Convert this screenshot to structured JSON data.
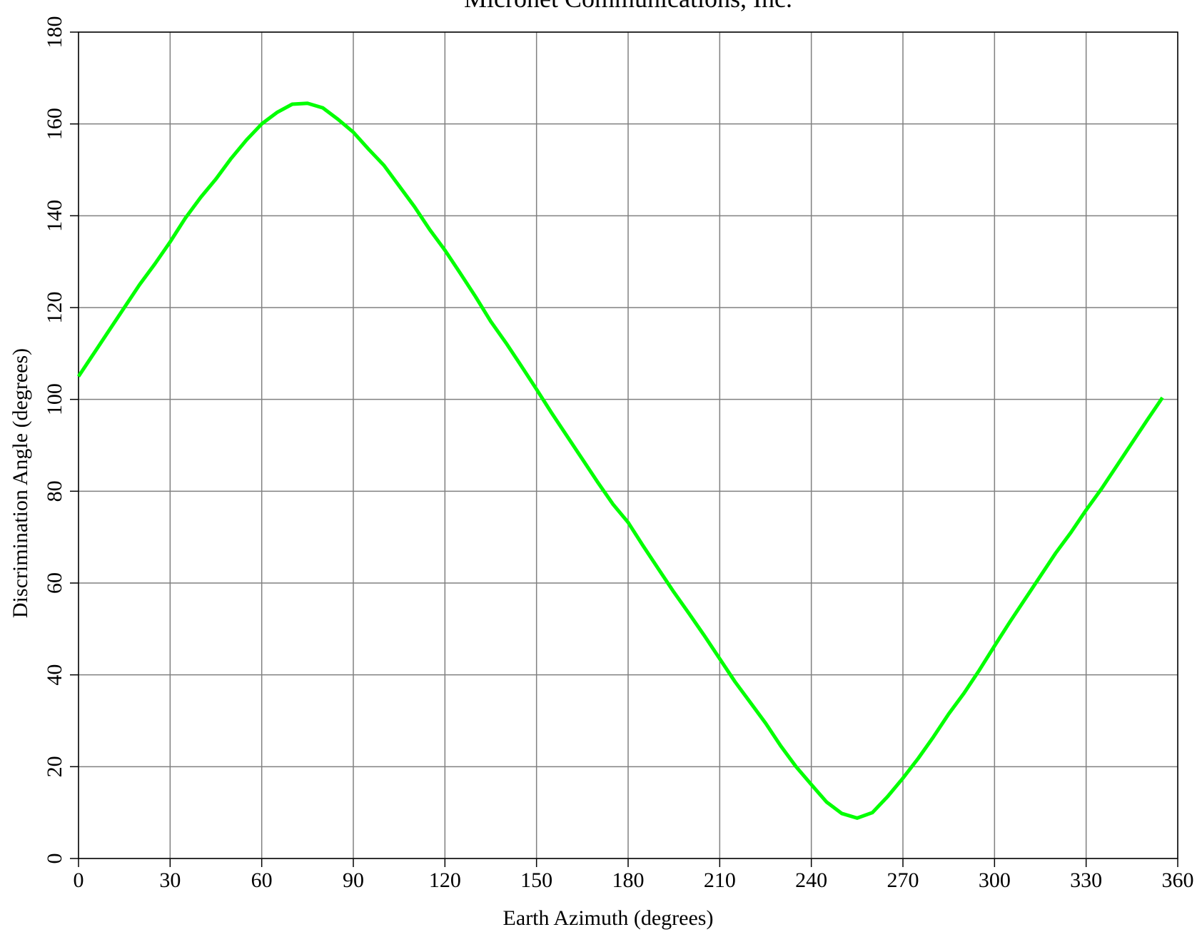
{
  "chart_data": {
    "type": "line",
    "title": "Micronet Communications, Inc.",
    "x_label": "Earth Azimuth (degrees)",
    "y_label": "Discrimination Angle (degrees)",
    "x": [
      0,
      5,
      10,
      15,
      20,
      25,
      30,
      35,
      40,
      45,
      50,
      55,
      60,
      65,
      70,
      75,
      80,
      85,
      90,
      95,
      100,
      105,
      110,
      115,
      120,
      125,
      130,
      135,
      140,
      145,
      150,
      155,
      160,
      165,
      170,
      175,
      180,
      185,
      190,
      195,
      200,
      205,
      210,
      215,
      220,
      225,
      230,
      235,
      240,
      245,
      250,
      255,
      260,
      265,
      270,
      275,
      280,
      285,
      290,
      295,
      300,
      305,
      310,
      315,
      320,
      325,
      330,
      335,
      340,
      345,
      350,
      355
    ],
    "series": [
      {
        "name": "Discrimination Angle",
        "color": "#00ff00",
        "values": [
          105,
          110,
          115,
          120,
          125,
          129.5,
          134.3,
          139.5,
          144,
          148,
          152.5,
          156.5,
          160,
          162.5,
          164.3,
          164.5,
          163.5,
          161,
          158.2,
          154.5,
          151,
          146.5,
          142,
          137,
          132.5,
          127.5,
          122.4,
          117,
          112.3,
          107.3,
          102.2,
          97,
          92,
          87,
          82,
          77.2,
          73.2,
          68,
          63,
          58,
          53.3,
          48.5,
          43.5,
          38.5,
          34,
          29.5,
          24.5,
          20,
          16.1,
          12.3,
          9.8,
          8.8,
          10,
          13.5,
          17.5,
          21.8,
          26.5,
          31.5,
          36,
          41,
          46.3,
          51.5,
          56.5,
          61.5,
          66.5,
          71,
          75.9,
          80.5,
          85.5,
          90.5,
          95.5,
          100.4
        ]
      }
    ],
    "xlim": [
      0,
      360
    ],
    "xticks": [
      0,
      30,
      60,
      90,
      120,
      150,
      180,
      210,
      240,
      270,
      300,
      330,
      360
    ],
    "ylim": [
      0,
      180
    ],
    "yticks": [
      0,
      20,
      40,
      60,
      80,
      100,
      120,
      140,
      160,
      180
    ],
    "grid": true
  }
}
